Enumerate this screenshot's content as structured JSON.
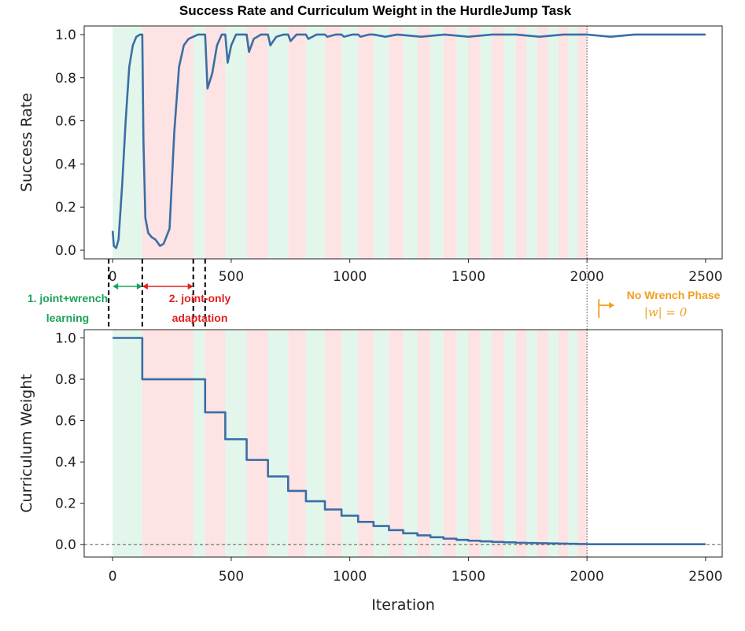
{
  "figure_title": "Success Rate and Curriculum Weight in the HurdleJump Task",
  "colors": {
    "line": "#3a6ea5",
    "green_phase": "#e3f6ec",
    "red_phase": "#fde3e3",
    "annotation_green": "#1aa35a",
    "annotation_red": "#e02020",
    "annotation_orange": "#f0a020"
  },
  "annotations": {
    "phase1_line1": "1. joint+wrench",
    "phase1_line2": "learning",
    "phase2_line1": "2. joint-only",
    "phase2_line2": "adaptation",
    "no_wrench_line1": "No Wrench Phase",
    "no_wrench_line2": "|w| = 0"
  },
  "phase_boundaries": [
    0,
    125,
    340,
    390,
    475,
    565,
    655,
    740,
    815,
    895,
    965,
    1035,
    1100,
    1165,
    1225,
    1285,
    1340,
    1395,
    1450,
    1500,
    1550,
    1600,
    1650,
    1700,
    1745,
    1790,
    1835,
    1880,
    1920,
    1960,
    2000
  ],
  "chart_data": [
    {
      "type": "line",
      "title": "",
      "xlabel": "",
      "ylabel": "Success Rate",
      "xlim": [
        -120,
        2570
      ],
      "ylim": [
        -0.04,
        1.04
      ],
      "xticks": [
        0,
        500,
        1000,
        1500,
        2000,
        2500
      ],
      "yticks": [
        "0.0",
        "0.2",
        "0.4",
        "0.6",
        "0.8",
        "1.0"
      ],
      "series": [
        {
          "x": [
            0,
            5,
            15,
            25,
            40,
            55,
            70,
            85,
            100,
            115,
            125,
            130,
            138,
            150,
            165,
            180,
            200,
            215,
            240,
            260,
            280,
            300,
            320,
            340,
            360,
            380,
            390,
            400,
            420,
            440,
            460,
            475,
            485,
            500,
            520,
            545,
            565,
            575,
            595,
            625,
            655,
            665,
            690,
            720,
            740,
            750,
            775,
            815,
            825,
            860,
            895,
            905,
            940,
            965,
            975,
            1010,
            1035,
            1045,
            1080,
            1100,
            1150,
            1200,
            1300,
            1400,
            1500,
            1600,
            1700,
            1800,
            1900,
            2000,
            2100,
            2200,
            2300,
            2400,
            2500
          ],
          "y": [
            0.09,
            0.02,
            0.01,
            0.05,
            0.3,
            0.6,
            0.85,
            0.95,
            0.99,
            1.0,
            1.0,
            0.5,
            0.15,
            0.08,
            0.06,
            0.05,
            0.02,
            0.03,
            0.1,
            0.55,
            0.85,
            0.95,
            0.98,
            0.99,
            1.0,
            1.0,
            1.0,
            0.75,
            0.82,
            0.95,
            1.0,
            1.0,
            0.87,
            0.95,
            1.0,
            1.0,
            1.0,
            0.92,
            0.98,
            1.0,
            1.0,
            0.95,
            0.99,
            1.0,
            1.0,
            0.97,
            1.0,
            1.0,
            0.98,
            1.0,
            1.0,
            0.99,
            1.0,
            1.0,
            0.99,
            1.0,
            1.0,
            0.99,
            1.0,
            1.0,
            0.99,
            1.0,
            0.99,
            1.0,
            0.99,
            1.0,
            1.0,
            0.99,
            1.0,
            1.0,
            0.99,
            1.0,
            1.0,
            1.0,
            1.0
          ]
        }
      ]
    },
    {
      "type": "line",
      "title": "",
      "xlabel": "Iteration",
      "ylabel": "Curriculum Weight",
      "xlim": [
        -120,
        2570
      ],
      "ylim": [
        -0.06,
        1.04
      ],
      "xticks": [
        0,
        500,
        1000,
        1500,
        2000,
        2500
      ],
      "yticks": [
        "0.0",
        "0.2",
        "0.4",
        "0.6",
        "0.8",
        "1.0"
      ],
      "reference_line_y": 0,
      "series": [
        {
          "step": true,
          "x": [
            0,
            125,
            390,
            475,
            565,
            655,
            740,
            815,
            895,
            965,
            1035,
            1100,
            1165,
            1225,
            1285,
            1340,
            1395,
            1450,
            1500,
            1550,
            1600,
            1650,
            1700,
            1745,
            1790,
            1835,
            1880,
            1920,
            1960,
            2000,
            2500
          ],
          "y": [
            1.0,
            0.8,
            0.64,
            0.51,
            0.41,
            0.33,
            0.26,
            0.21,
            0.17,
            0.14,
            0.11,
            0.09,
            0.07,
            0.055,
            0.045,
            0.036,
            0.029,
            0.023,
            0.019,
            0.016,
            0.013,
            0.011,
            0.009,
            0.008,
            0.007,
            0.006,
            0.005,
            0.004,
            0.003,
            0.002,
            0.002
          ]
        }
      ]
    }
  ]
}
